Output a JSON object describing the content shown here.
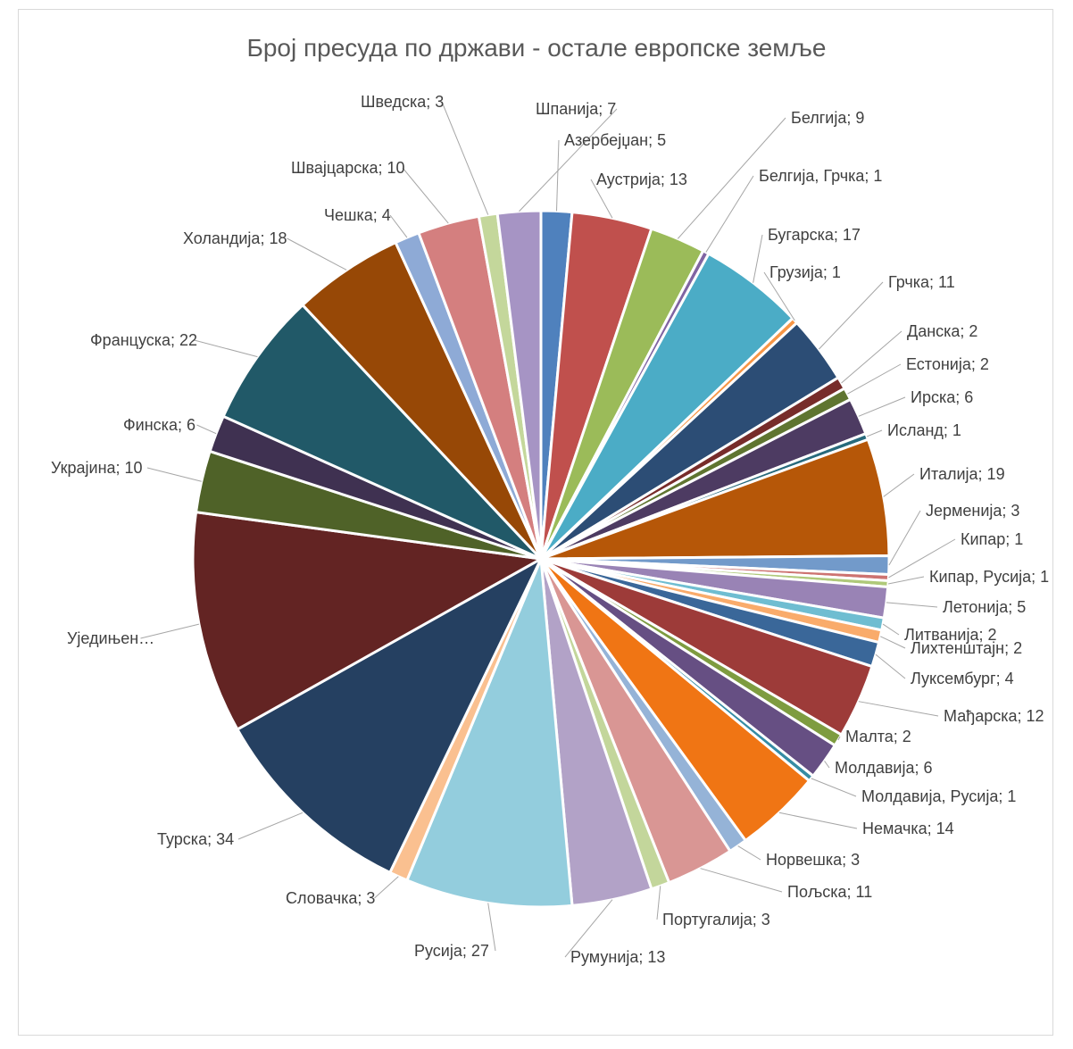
{
  "chart_data": {
    "type": "pie",
    "title": "Број пресуда по држави - остале европске земље",
    "slices": [
      {
        "label": "Азербејџан; 5",
        "value": 5,
        "color": "#4f81bd"
      },
      {
        "label": "Аустрија; 13",
        "value": 13,
        "color": "#c0504d"
      },
      {
        "label": "Белгија; 9",
        "value": 9,
        "color": "#9bbb59"
      },
      {
        "label": "Белгија, Грчка; 1",
        "value": 1,
        "color": "#8064a2"
      },
      {
        "label": "Бугарска; 17",
        "value": 17,
        "color": "#4bacc6"
      },
      {
        "label": "Грузија; 1",
        "value": 1,
        "color": "#f79646"
      },
      {
        "label": "Грчка; 11",
        "value": 11,
        "color": "#2c4d75"
      },
      {
        "label": "Данска; 2",
        "value": 2,
        "color": "#772c2a"
      },
      {
        "label": "Естонија; 2",
        "value": 2,
        "color": "#5f7530"
      },
      {
        "label": "Ирска; 6",
        "value": 6,
        "color": "#4d3b62"
      },
      {
        "label": "Исланд; 1",
        "value": 1,
        "color": "#276a7c"
      },
      {
        "label": "Италија; 19",
        "value": 19,
        "color": "#b65708"
      },
      {
        "label": "Јерменија; 3",
        "value": 3,
        "color": "#729aca"
      },
      {
        "label": "Кипар; 1",
        "value": 1,
        "color": "#cd7371"
      },
      {
        "label": "Кипар, Русија; 1",
        "value": 1,
        "color": "#afc97a"
      },
      {
        "label": "Летонија; 5",
        "value": 5,
        "color": "#9983b5"
      },
      {
        "label": "Литванија; 2",
        "value": 2,
        "color": "#6fbdd1"
      },
      {
        "label": "Лихтенштајн; 2",
        "value": 2,
        "color": "#f9ab6b"
      },
      {
        "label": "Луксембург; 4",
        "value": 4,
        "color": "#3a6799"
      },
      {
        "label": "Мађарска; 12",
        "value": 12,
        "color": "#9d3b39"
      },
      {
        "label": "Малта; 2",
        "value": 2,
        "color": "#7e9c40"
      },
      {
        "label": "Молдавија; 6",
        "value": 6,
        "color": "#664f83"
      },
      {
        "label": "Молдавија, Русија; 1",
        "value": 1,
        "color": "#358ca4"
      },
      {
        "label": "Немачка; 14",
        "value": 14,
        "color": "#f07514"
      },
      {
        "label": "Норвешка; 3",
        "value": 3,
        "color": "#95b3d7"
      },
      {
        "label": "Пољска; 11",
        "value": 11,
        "color": "#d99694"
      },
      {
        "label": "Португалија; 3",
        "value": 3,
        "color": "#c3d69b"
      },
      {
        "label": "Румунија; 13",
        "value": 13,
        "color": "#b2a2c7"
      },
      {
        "label": "Русија; 27",
        "value": 27,
        "color": "#93cddd"
      },
      {
        "label": "Словачка; 3",
        "value": 3,
        "color": "#fac090"
      },
      {
        "label": "Турска; 34",
        "value": 34,
        "color": "#254061"
      },
      {
        "label": "Уједињен…",
        "value": 36,
        "color": "#632423"
      },
      {
        "label": "Украјина; 10",
        "value": 10,
        "color": "#4f6228"
      },
      {
        "label": "Финска; 6",
        "value": 6,
        "color": "#3f3151"
      },
      {
        "label": "Француска; 22",
        "value": 22,
        "color": "#215968"
      },
      {
        "label": "Холандија; 18",
        "value": 18,
        "color": "#974806"
      },
      {
        "label": "Чешка; 4",
        "value": 4,
        "color": "#8eaad6"
      },
      {
        "label": "Швајцарска; 10",
        "value": 10,
        "color": "#d47f7f"
      },
      {
        "label": "Шведска; 3",
        "value": 3,
        "color": "#c4d79b"
      },
      {
        "label": "Шпанија; 7",
        "value": 7,
        "color": "#a694c4"
      }
    ]
  }
}
